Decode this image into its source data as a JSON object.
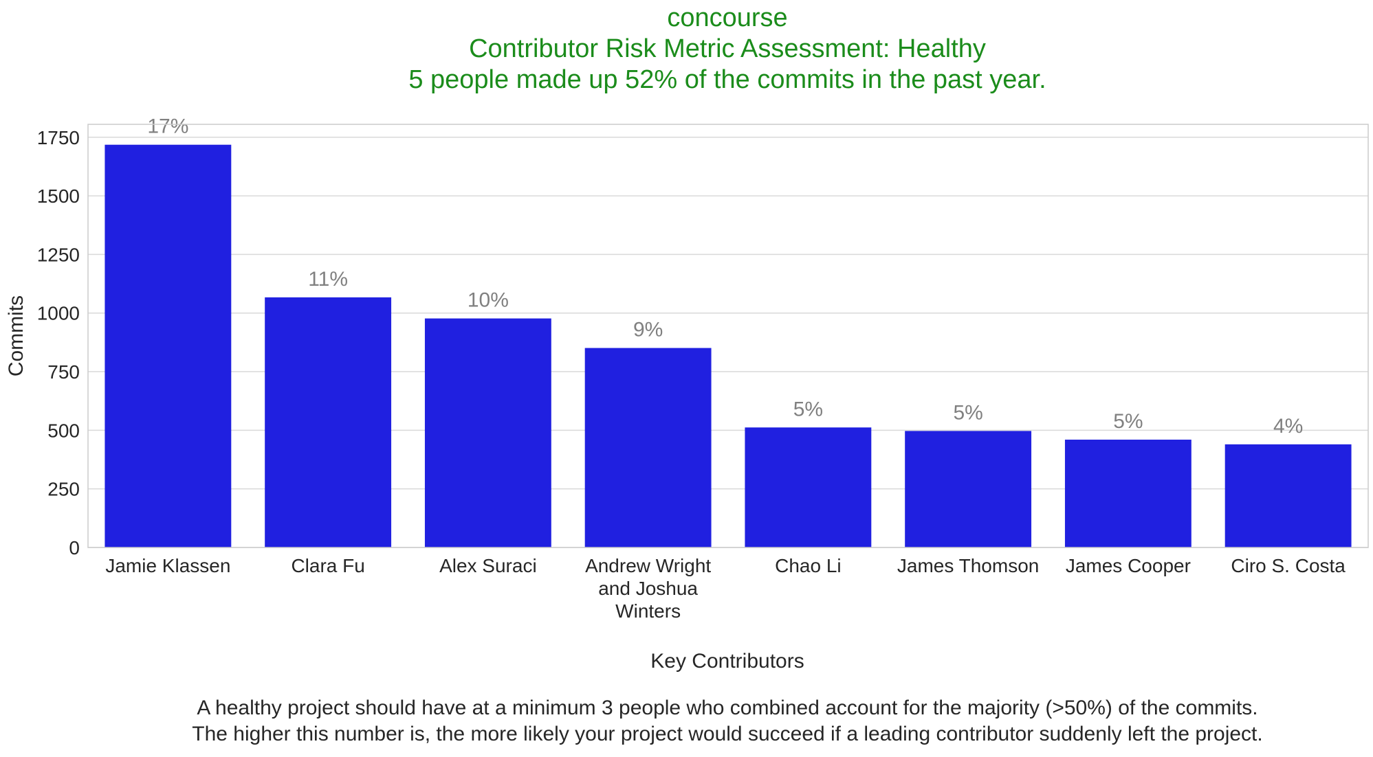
{
  "chart_data": {
    "type": "bar",
    "title_lines": [
      "concourse",
      "Contributor Risk Metric Assessment: Healthy",
      "5 people made up 52% of the commits in the past year."
    ],
    "title_color": "#1b8c1b",
    "categories": [
      [
        "Jamie Klassen"
      ],
      [
        "Clara Fu"
      ],
      [
        "Alex Suraci"
      ],
      [
        "Andrew Wright",
        "and Joshua",
        "Winters"
      ],
      [
        "Chao Li"
      ],
      [
        "James Thomson"
      ],
      [
        "James Cooper"
      ],
      [
        "Ciro S. Costa"
      ]
    ],
    "values": [
      1718,
      1067,
      977,
      851,
      512,
      497,
      460,
      440
    ],
    "data_labels": [
      "17%",
      "11%",
      "10%",
      "9%",
      "5%",
      "5%",
      "5%",
      "4%"
    ],
    "xlabel": "Key Contributors",
    "ylabel": "Commits",
    "ylim": [
      0,
      1805
    ],
    "yticks": [
      0,
      250,
      500,
      750,
      1000,
      1250,
      1500,
      1750
    ],
    "grid": true,
    "bar_color": "#2020e0",
    "data_label_color": "#808080",
    "footnote_lines": [
      "A healthy project should have at a minimum 3 people who combined account for the majority (>50%) of the commits.",
      "The higher this number is, the more likely your project would succeed if a leading contributor suddenly left the project."
    ]
  }
}
